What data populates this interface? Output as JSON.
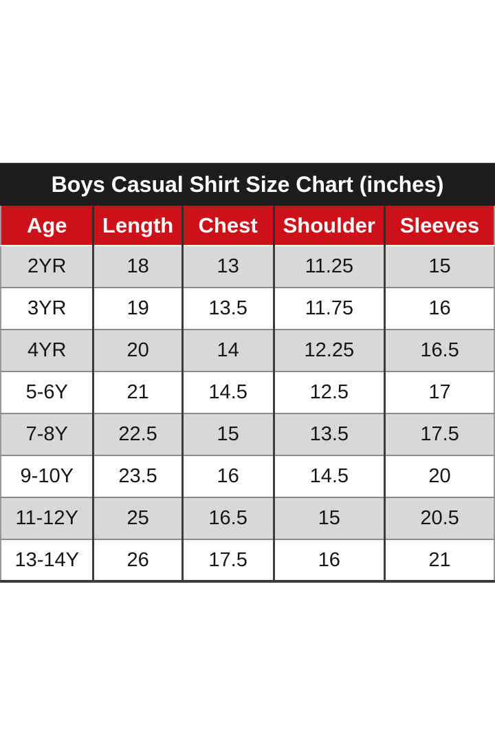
{
  "title_bar": {
    "title": "Boys Casual Shirt Size Chart (inches)"
  },
  "chart_data": {
    "type": "table",
    "title": "Boys Casual Shirt Size Chart (inches)",
    "columns": [
      "Age",
      "Length",
      "Chest",
      "Shoulder",
      "Sleeves"
    ],
    "rows": [
      [
        "2YR",
        "18",
        "13",
        "11.25",
        "15"
      ],
      [
        "3YR",
        "19",
        "13.5",
        "11.75",
        "16"
      ],
      [
        "4YR",
        "20",
        "14",
        "12.25",
        "16.5"
      ],
      [
        "5-6Y",
        "21",
        "14.5",
        "12.5",
        "17"
      ],
      [
        "7-8Y",
        "22.5",
        "15",
        "13.5",
        "17.5"
      ],
      [
        "9-10Y",
        "23.5",
        "16",
        "14.5",
        "20"
      ],
      [
        "11-12Y",
        "25",
        "16.5",
        "15",
        "20.5"
      ],
      [
        "13-14Y",
        "26",
        "17.5",
        "16",
        "21"
      ]
    ],
    "units": "inches"
  },
  "colors": {
    "page_bg": "#ffffff",
    "title_bar_bg": "#1d1d1d",
    "title_text": "#ffffff",
    "header_bg": "#cc1118",
    "header_text": "#ffffff",
    "row_alt_bg": "#d8d8d8",
    "row_bg": "#ffffff",
    "cell_text": "#151515"
  }
}
